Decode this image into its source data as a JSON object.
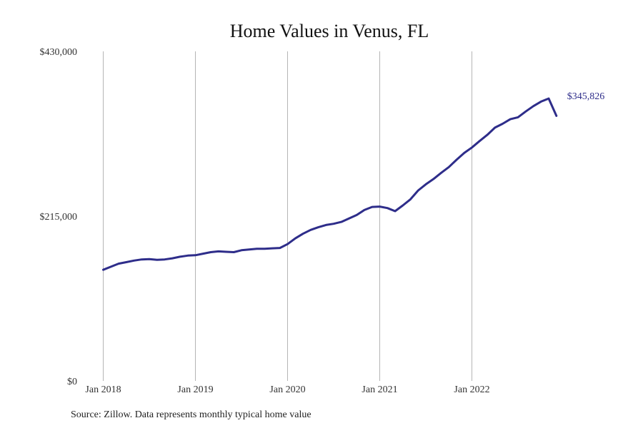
{
  "chart_data": {
    "type": "line",
    "title": "Home Values in Venus, FL",
    "xlabel": "",
    "ylabel": "",
    "ylim": [
      0,
      430000
    ],
    "y_ticks": [
      {
        "value": 0,
        "label": "$0"
      },
      {
        "value": 215000,
        "label": "$215,000"
      },
      {
        "value": 430000,
        "label": "$430,000"
      }
    ],
    "x_ticks": [
      {
        "value": "2018-01",
        "label": "Jan 2018"
      },
      {
        "value": "2019-01",
        "label": "Jan 2019"
      },
      {
        "value": "2020-01",
        "label": "Jan 2020"
      },
      {
        "value": "2021-01",
        "label": "Jan 2021"
      },
      {
        "value": "2022-01",
        "label": "Jan 2022"
      }
    ],
    "vertical_grid": true,
    "horizontal_grid": false,
    "series": [
      {
        "color": "#2e2d8a",
        "x": [
          "2018-01",
          "2018-02",
          "2018-03",
          "2018-04",
          "2018-05",
          "2018-06",
          "2018-07",
          "2018-08",
          "2018-09",
          "2018-10",
          "2018-11",
          "2018-12",
          "2019-01",
          "2019-02",
          "2019-03",
          "2019-04",
          "2019-05",
          "2019-06",
          "2019-07",
          "2019-08",
          "2019-09",
          "2019-10",
          "2019-11",
          "2019-12",
          "2020-01",
          "2020-02",
          "2020-03",
          "2020-04",
          "2020-05",
          "2020-06",
          "2020-07",
          "2020-08",
          "2020-09",
          "2020-10",
          "2020-11",
          "2020-12",
          "2021-01",
          "2021-02",
          "2021-03",
          "2021-04",
          "2021-05",
          "2021-06",
          "2021-07",
          "2021-08",
          "2021-09",
          "2021-10",
          "2021-11",
          "2021-12",
          "2022-01",
          "2022-02",
          "2022-03",
          "2022-04",
          "2022-05",
          "2022-06",
          "2022-07",
          "2022-08",
          "2022-09",
          "2022-10",
          "2022-11",
          "2022-12"
        ],
        "values": [
          145000,
          149000,
          153000,
          155000,
          157000,
          158500,
          159000,
          158000,
          158500,
          160000,
          162000,
          163500,
          164000,
          166000,
          168000,
          169000,
          168500,
          168000,
          170500,
          171500,
          172500,
          172500,
          173000,
          173500,
          178500,
          186000,
          192000,
          197000,
          200500,
          203500,
          205000,
          207500,
          212000,
          216500,
          223000,
          227000,
          227500,
          225500,
          221500,
          229000,
          237000,
          248500,
          256500,
          263500,
          271500,
          279000,
          288500,
          297500,
          304500,
          313000,
          321000,
          330500,
          335500,
          341500,
          344000,
          351500,
          358500,
          364500,
          368500,
          345826
        ]
      }
    ],
    "end_label": "$345,826"
  },
  "footer": {
    "source": "Source: Zillow. Data represents monthly typical home value"
  }
}
